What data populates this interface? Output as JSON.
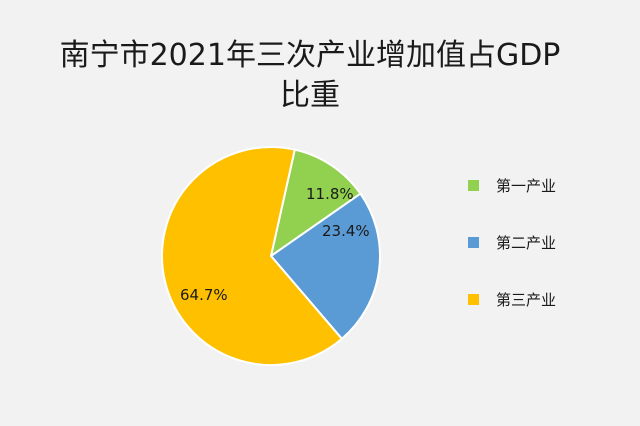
{
  "chart_data": {
    "type": "pie",
    "title": "南宁市2021年三次产业增加值占GDP比重",
    "title_line1": "南宁市2021年三次产业增加值占GDP",
    "title_line2": "比重",
    "categories": [
      "第一产业",
      "第二产业",
      "第三产业"
    ],
    "values": [
      11.8,
      23.4,
      64.7
    ],
    "labels": [
      "11.8%",
      "23.4%",
      "64.7%"
    ],
    "colors": [
      "#92d050",
      "#5b9bd5",
      "#ffc000"
    ],
    "legend_position": "right"
  }
}
